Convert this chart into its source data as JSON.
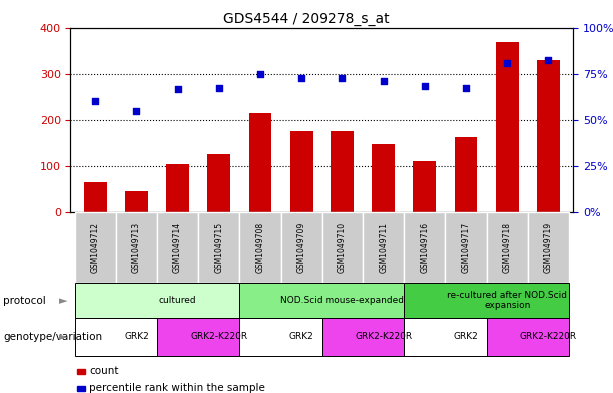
{
  "title": "GDS4544 / 209278_s_at",
  "samples": [
    "GSM1049712",
    "GSM1049713",
    "GSM1049714",
    "GSM1049715",
    "GSM1049708",
    "GSM1049709",
    "GSM1049710",
    "GSM1049711",
    "GSM1049716",
    "GSM1049717",
    "GSM1049718",
    "GSM1049719"
  ],
  "counts": [
    65,
    45,
    105,
    125,
    215,
    175,
    175,
    148,
    112,
    162,
    368,
    330
  ],
  "percentile_pct": [
    60,
    55,
    66.5,
    67.5,
    75,
    72.5,
    72.5,
    71,
    68.5,
    67.5,
    81,
    82.5
  ],
  "bar_color": "#cc0000",
  "dot_color": "#0000cc",
  "ylim_left": [
    0,
    400
  ],
  "ylim_right": [
    0,
    100
  ],
  "yticks_left": [
    0,
    100,
    200,
    300,
    400
  ],
  "yticks_right": [
    0,
    25,
    50,
    75,
    100
  ],
  "ytick_labels_right": [
    "0%",
    "25%",
    "50%",
    "75%",
    "100%"
  ],
  "protocol_groups": [
    {
      "label": "cultured",
      "start": 0,
      "end": 4,
      "color": "#ccffcc"
    },
    {
      "label": "NOD.Scid mouse-expanded",
      "start": 4,
      "end": 8,
      "color": "#88ee88"
    },
    {
      "label": "re-cultured after NOD.Scid\nexpansion",
      "start": 8,
      "end": 12,
      "color": "#44cc44"
    }
  ],
  "genotype_groups": [
    {
      "label": "GRK2",
      "start": 0,
      "end": 2,
      "color": "#ffffff"
    },
    {
      "label": "GRK2-K220R",
      "start": 2,
      "end": 4,
      "color": "#ee44ee"
    },
    {
      "label": "GRK2",
      "start": 4,
      "end": 6,
      "color": "#ffffff"
    },
    {
      "label": "GRK2-K220R",
      "start": 6,
      "end": 8,
      "color": "#ee44ee"
    },
    {
      "label": "GRK2",
      "start": 8,
      "end": 10,
      "color": "#ffffff"
    },
    {
      "label": "GRK2-K220R",
      "start": 10,
      "end": 12,
      "color": "#ee44ee"
    }
  ],
  "legend_items": [
    {
      "label": "count",
      "color": "#cc0000"
    },
    {
      "label": "percentile rank within the sample",
      "color": "#0000cc"
    }
  ],
  "protocol_label": "protocol",
  "genotype_label": "genotype/variation",
  "background_color": "#ffffff",
  "tick_label_color_left": "#cc0000",
  "tick_label_color_right": "#0000cc",
  "sample_bg_color": "#cccccc",
  "sample_border_color": "#ffffff"
}
